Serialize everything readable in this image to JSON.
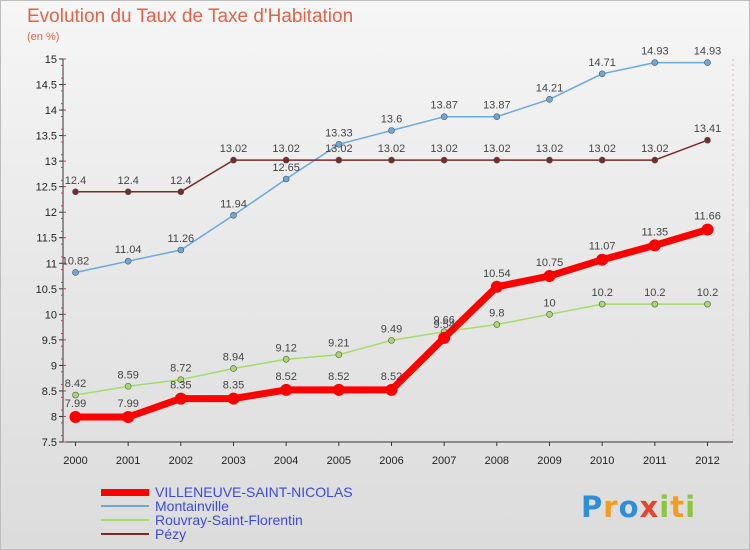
{
  "chart_data": {
    "type": "line",
    "title": "Evolution du Taux de Taxe d'Habitation",
    "subtitle": "(en %)",
    "x": [
      "2000",
      "2001",
      "2002",
      "2003",
      "2004",
      "2005",
      "2006",
      "2007",
      "2008",
      "2009",
      "2010",
      "2011",
      "2012"
    ],
    "ylim": [
      7.5,
      15
    ],
    "yticks": [
      "7.5",
      "8",
      "8.5",
      "9",
      "9.5",
      "10",
      "10.5",
      "11",
      "11.5",
      "12",
      "12.5",
      "13",
      "13.5",
      "14",
      "14.5",
      "15"
    ],
    "grid": false,
    "legend_position": "bottom-left",
    "series": [
      {
        "name": "VILLENEUVE-SAINT-NICOLAS",
        "color": "#ff0000",
        "values": [
          7.99,
          7.99,
          8.35,
          8.35,
          8.52,
          8.52,
          8.52,
          9.54,
          10.54,
          10.75,
          11.07,
          11.35,
          11.66
        ],
        "labels": [
          "7.99",
          "7.99",
          "8.35",
          "8.35",
          "8.52",
          "8.52",
          "8.52",
          "9.54",
          "10.54",
          "10.75",
          "11.07",
          "11.35",
          "11.66"
        ]
      },
      {
        "name": "Montainville",
        "color": "#6aa8dd",
        "values": [
          10.82,
          11.04,
          11.26,
          11.94,
          12.65,
          13.33,
          13.6,
          13.87,
          13.87,
          14.21,
          14.71,
          14.93,
          14.93
        ],
        "labels": [
          "10.82",
          "11.04",
          "11.26",
          "11.94",
          "12.65",
          "13.33",
          "13.6",
          "13.87",
          "13.87",
          "14.21",
          "14.71",
          "14.93",
          "14.93"
        ]
      },
      {
        "name": "Rouvray-Saint-Florentin",
        "color": "#a6db6a",
        "values": [
          8.42,
          8.59,
          8.72,
          8.94,
          9.12,
          9.21,
          9.49,
          9.66,
          9.8,
          10,
          10.2,
          10.2,
          10.2
        ],
        "labels": [
          "8.42",
          "8.59",
          "8.72",
          "8.94",
          "9.12",
          "9.21",
          "9.49",
          "9.66",
          "9.8",
          "10",
          "10.2",
          "10.2",
          "10.2"
        ]
      },
      {
        "name": "Pézy",
        "color": "#7a2a2a",
        "values": [
          12.4,
          12.4,
          12.4,
          13.02,
          13.02,
          13.02,
          13.02,
          13.02,
          13.02,
          13.02,
          13.02,
          13.02,
          13.41
        ],
        "labels": [
          "12.4",
          "12.4",
          "12.4",
          "13.02",
          "13.02",
          "13.02",
          "13.02",
          "13.02",
          "13.02",
          "13.02",
          "13.02",
          "13.02",
          "13.41"
        ]
      }
    ]
  },
  "logo": {
    "letters": [
      {
        "ch": "P",
        "color": "#2f8fd6"
      },
      {
        "ch": "r",
        "color": "#f39c1f"
      },
      {
        "ch": "o",
        "color": "#2f8fd6"
      },
      {
        "ch": "x",
        "color": "#e8432d"
      },
      {
        "ch": "i",
        "color": "#8cc63f"
      },
      {
        "ch": "t",
        "color": "#f39c1f"
      },
      {
        "ch": "i",
        "color": "#8cc63f"
      }
    ]
  }
}
